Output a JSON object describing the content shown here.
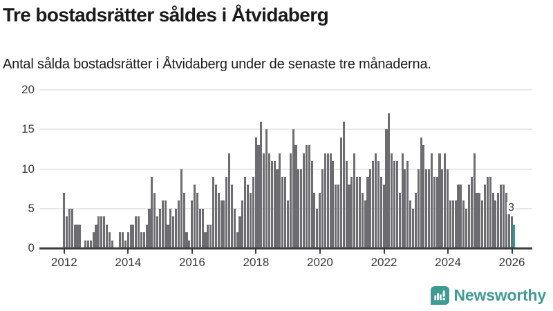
{
  "header": {
    "title": "Tre bostadsrätter såldes i Åtvidaberg",
    "subtitle": "Antal sålda bostadsrätter i Åtvidaberg under de senaste tre månaderna."
  },
  "chart_data": {
    "type": "bar",
    "x_start": "2012-01",
    "frequency": "monthly",
    "values": [
      7,
      4,
      5,
      5,
      3,
      3,
      3,
      0,
      1,
      1,
      1,
      2,
      3,
      4,
      4,
      4,
      3,
      2,
      1,
      0,
      0,
      2,
      2,
      1,
      2,
      3,
      3,
      4,
      4,
      2,
      2,
      3,
      5,
      9,
      7,
      4,
      5,
      6,
      6,
      3,
      5,
      4,
      5,
      6,
      10,
      7,
      2,
      1,
      6,
      8,
      7,
      5,
      5,
      2,
      3,
      3,
      9,
      8,
      7,
      6,
      6,
      9,
      12,
      8,
      5,
      2,
      4,
      6,
      9,
      8,
      7,
      9,
      14,
      13,
      16,
      12,
      15,
      12,
      11,
      11,
      10,
      12,
      9,
      9,
      6,
      12,
      15,
      13,
      10,
      10,
      12,
      13,
      13,
      11,
      7,
      5,
      7,
      10,
      12,
      12,
      12,
      11,
      8,
      8,
      14,
      16,
      11,
      8,
      9,
      12,
      9,
      9,
      7,
      6,
      9,
      10,
      11,
      12,
      11,
      9,
      8,
      15,
      17,
      12,
      11,
      11,
      7,
      12,
      10,
      11,
      6,
      5,
      7,
      10,
      14,
      13,
      10,
      10,
      12,
      9,
      9,
      12,
      10,
      12,
      10,
      6,
      6,
      6,
      8,
      8,
      6,
      5,
      8,
      9,
      12,
      7,
      7,
      6,
      8,
      9,
      9,
      7,
      6,
      7,
      8,
      8,
      7,
      5,
      4,
      3
    ],
    "highlight_index": 169,
    "highlight_label": "3",
    "yticks": [
      0,
      5,
      10,
      15,
      20
    ],
    "xticks": [
      "2012",
      "2014",
      "2016",
      "2018",
      "2020",
      "2022",
      "2024",
      "2026"
    ],
    "ylim": [
      0,
      20
    ],
    "grid": true,
    "legend": "none",
    "bar_color": "#6d6d71",
    "highlight_color": "#1ea29e",
    "axis_color": "#3c3c3c",
    "gridline_color": "#e8e8e8"
  },
  "footer": {
    "brand": "Newsworthy",
    "brand_color": "#3e9b94",
    "logo_icon": "newsworthy-bubble-chart-icon"
  }
}
